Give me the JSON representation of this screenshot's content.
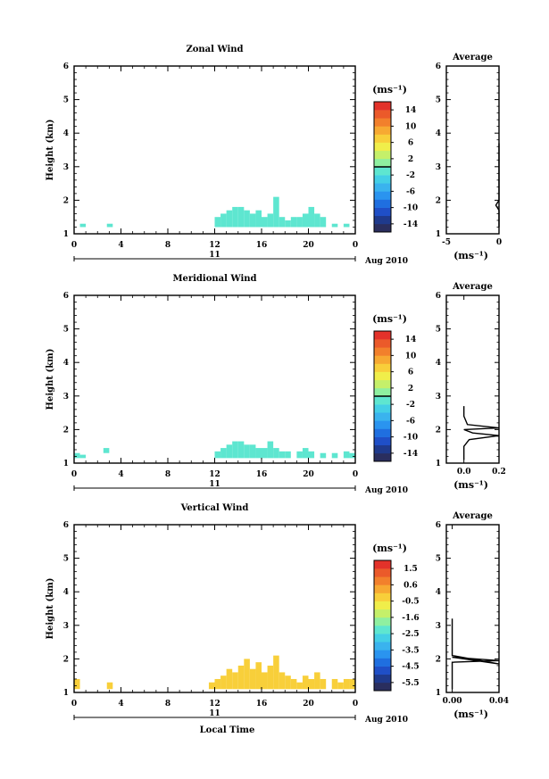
{
  "colormap": [
    "#2a2e5e",
    "#1f3a8c",
    "#1f4fc7",
    "#1f6fe0",
    "#2a94ef",
    "#3ab3ee",
    "#44cfe6",
    "#5ee6d0",
    "#8ff0a0",
    "#c5f06a",
    "#f0ee4a",
    "#f8cf3a",
    "#f7a932",
    "#f2802c",
    "#eb5a2a",
    "#e3322a"
  ],
  "panels": [
    {
      "title": "Zonal Wind",
      "ylabel": "Height (km)",
      "yticks": [
        "1",
        "2",
        "3",
        "4",
        "5",
        "6"
      ],
      "xticks": [
        "0",
        "4",
        "8",
        "12",
        "16",
        "20",
        "0"
      ],
      "day_label": "11",
      "month_label": "Aug 2010",
      "xlabel": "",
      "colorbar": {
        "unit": "(ms⁻¹)",
        "labels": [
          "14",
          "10",
          "6",
          "2",
          "-2",
          "-6",
          "-10",
          "-14"
        ],
        "zero_line": true
      },
      "average": {
        "title": "Average",
        "yticks": [
          "1",
          "2",
          "3",
          "4",
          "5",
          "6"
        ],
        "xticks": [
          "-5",
          "0"
        ],
        "xlabel": "(ms⁻¹)",
        "xlim": [
          -5,
          0
        ]
      },
      "chart_data": {
        "type": "heatmap",
        "x_range_hours": [
          0,
          24
        ],
        "y_range_km": [
          1,
          6
        ],
        "bins": [
          {
            "h": 0.5,
            "z": 1.2,
            "dz": 0.1,
            "c": 7
          },
          {
            "h": 2.8,
            "z": 1.2,
            "dz": 0.1,
            "c": 7
          },
          {
            "h": 12.0,
            "z": 1.2,
            "dz": 0.3,
            "c": 7
          },
          {
            "h": 12.5,
            "z": 1.2,
            "dz": 0.4,
            "c": 7
          },
          {
            "h": 13.0,
            "z": 1.2,
            "dz": 0.5,
            "c": 7
          },
          {
            "h": 13.5,
            "z": 1.2,
            "dz": 0.6,
            "c": 7
          },
          {
            "h": 14.0,
            "z": 1.2,
            "dz": 0.6,
            "c": 7
          },
          {
            "h": 14.5,
            "z": 1.2,
            "dz": 0.5,
            "c": 7
          },
          {
            "h": 15.0,
            "z": 1.2,
            "dz": 0.4,
            "c": 7
          },
          {
            "h": 15.5,
            "z": 1.2,
            "dz": 0.5,
            "c": 7
          },
          {
            "h": 16.0,
            "z": 1.2,
            "dz": 0.3,
            "c": 7
          },
          {
            "h": 16.5,
            "z": 1.2,
            "dz": 0.4,
            "c": 7
          },
          {
            "h": 17.0,
            "z": 1.2,
            "dz": 0.9,
            "c": 7
          },
          {
            "h": 17.5,
            "z": 1.2,
            "dz": 0.3,
            "c": 7
          },
          {
            "h": 18.0,
            "z": 1.2,
            "dz": 0.2,
            "c": 7
          },
          {
            "h": 18.5,
            "z": 1.2,
            "dz": 0.3,
            "c": 7
          },
          {
            "h": 19.0,
            "z": 1.2,
            "dz": 0.3,
            "c": 7
          },
          {
            "h": 19.5,
            "z": 1.2,
            "dz": 0.4,
            "c": 7
          },
          {
            "h": 20.0,
            "z": 1.2,
            "dz": 0.6,
            "c": 7
          },
          {
            "h": 20.5,
            "z": 1.2,
            "dz": 0.4,
            "c": 7
          },
          {
            "h": 21.0,
            "z": 1.2,
            "dz": 0.3,
            "c": 7
          },
          {
            "h": 22.0,
            "z": 1.2,
            "dz": 0.1,
            "c": 7
          },
          {
            "h": 23.0,
            "z": 1.2,
            "dz": 0.1,
            "c": 7
          }
        ],
        "profile": [
          [
            0,
            1.2
          ],
          [
            0,
            1.7
          ],
          [
            -0.3,
            1.85
          ],
          [
            0,
            2.0
          ],
          [
            0,
            2.2
          ],
          [
            0,
            3.4
          ],
          [
            0,
            3.7
          ]
        ]
      }
    },
    {
      "title": "Meridional Wind",
      "ylabel": "Height (km)",
      "yticks": [
        "1",
        "2",
        "3",
        "4",
        "5",
        "6"
      ],
      "xticks": [
        "0",
        "4",
        "8",
        "12",
        "16",
        "20",
        "0"
      ],
      "day_label": "11",
      "month_label": "Aug 2010",
      "xlabel": "",
      "colorbar": {
        "unit": "(ms⁻¹)",
        "labels": [
          "14",
          "10",
          "6",
          "2",
          "-2",
          "-6",
          "-10",
          "-14"
        ],
        "zero_line": true
      },
      "average": {
        "title": "Average",
        "yticks": [
          "1",
          "2",
          "3",
          "4",
          "5",
          "6"
        ],
        "xticks": [
          "0.0",
          "0.2"
        ],
        "xlabel": "(ms⁻¹)",
        "xlim": [
          -0.1,
          0.2
        ]
      },
      "chart_data": {
        "type": "heatmap",
        "x_range_hours": [
          0,
          24
        ],
        "y_range_km": [
          1,
          6
        ],
        "bins": [
          {
            "h": 0.0,
            "z": 1.15,
            "dz": 0.15,
            "c": 7
          },
          {
            "h": 0.5,
            "z": 1.15,
            "dz": 0.1,
            "c": 7
          },
          {
            "h": 2.5,
            "z": 1.3,
            "dz": 0.15,
            "c": 7
          },
          {
            "h": 12.0,
            "z": 1.15,
            "dz": 0.2,
            "c": 7
          },
          {
            "h": 12.5,
            "z": 1.15,
            "dz": 0.3,
            "c": 7
          },
          {
            "h": 13.0,
            "z": 1.15,
            "dz": 0.4,
            "c": 7
          },
          {
            "h": 13.5,
            "z": 1.15,
            "dz": 0.5,
            "c": 7
          },
          {
            "h": 14.0,
            "z": 1.15,
            "dz": 0.5,
            "c": 7
          },
          {
            "h": 14.5,
            "z": 1.15,
            "dz": 0.4,
            "c": 7
          },
          {
            "h": 15.0,
            "z": 1.15,
            "dz": 0.4,
            "c": 7
          },
          {
            "h": 15.5,
            "z": 1.15,
            "dz": 0.3,
            "c": 7
          },
          {
            "h": 16.0,
            "z": 1.15,
            "dz": 0.3,
            "c": 7
          },
          {
            "h": 16.5,
            "z": 1.15,
            "dz": 0.5,
            "c": 7
          },
          {
            "h": 17.0,
            "z": 1.15,
            "dz": 0.3,
            "c": 7
          },
          {
            "h": 17.5,
            "z": 1.15,
            "dz": 0.2,
            "c": 7
          },
          {
            "h": 18.0,
            "z": 1.15,
            "dz": 0.2,
            "c": 7
          },
          {
            "h": 19.0,
            "z": 1.15,
            "dz": 0.2,
            "c": 7
          },
          {
            "h": 19.5,
            "z": 1.15,
            "dz": 0.3,
            "c": 7
          },
          {
            "h": 20.0,
            "z": 1.15,
            "dz": 0.2,
            "c": 7
          },
          {
            "h": 21.0,
            "z": 1.15,
            "dz": 0.15,
            "c": 7
          },
          {
            "h": 22.0,
            "z": 1.15,
            "dz": 0.15,
            "c": 7
          },
          {
            "h": 23.0,
            "z": 1.15,
            "dz": 0.2,
            "c": 7
          },
          {
            "h": 23.5,
            "z": 1.15,
            "dz": 0.15,
            "c": 7
          }
        ],
        "profile": [
          [
            0,
            1.1
          ],
          [
            0,
            1.5
          ],
          [
            0.03,
            1.7
          ],
          [
            0.2,
            1.82
          ],
          [
            0.05,
            1.9
          ],
          [
            0,
            2.0
          ],
          [
            0.2,
            2.05
          ],
          [
            0.02,
            2.15
          ],
          [
            0,
            2.4
          ],
          [
            0,
            2.7
          ]
        ]
      }
    },
    {
      "title": "Vertical Wind",
      "ylabel": "Height (km)",
      "yticks": [
        "1",
        "2",
        "3",
        "4",
        "5",
        "6"
      ],
      "xticks": [
        "0",
        "4",
        "8",
        "12",
        "16",
        "20",
        "0"
      ],
      "day_label": "11",
      "month_label": "Aug 2010",
      "xlabel": "Local Time",
      "colorbar": {
        "unit": "(ms⁻¹)",
        "labels": [
          "1.5",
          "0.6",
          "-0.5",
          "-1.6",
          "-2.5",
          "-3.5",
          "-4.5",
          "-5.5"
        ],
        "zero_line": false
      },
      "average": {
        "title": "Average",
        "yticks": [
          "1",
          "2",
          "3",
          "4",
          "5",
          "6"
        ],
        "xticks": [
          "0.00",
          "0.04"
        ],
        "xlabel": "(ms⁻¹)",
        "xlim": [
          -0.005,
          0.04
        ]
      },
      "chart_data": {
        "type": "heatmap",
        "x_range_hours": [
          0,
          24
        ],
        "y_range_km": [
          1,
          6
        ],
        "bins": [
          {
            "h": 0.0,
            "z": 1.1,
            "dz": 0.3,
            "c": 11
          },
          {
            "h": 2.8,
            "z": 1.1,
            "dz": 0.2,
            "c": 11
          },
          {
            "h": 11.5,
            "z": 1.1,
            "dz": 0.2,
            "c": 11
          },
          {
            "h": 12.0,
            "z": 1.1,
            "dz": 0.3,
            "c": 11
          },
          {
            "h": 12.5,
            "z": 1.1,
            "dz": 0.4,
            "c": 11
          },
          {
            "h": 13.0,
            "z": 1.1,
            "dz": 0.6,
            "c": 11
          },
          {
            "h": 13.5,
            "z": 1.1,
            "dz": 0.5,
            "c": 11
          },
          {
            "h": 14.0,
            "z": 1.1,
            "dz": 0.7,
            "c": 11
          },
          {
            "h": 14.5,
            "z": 1.1,
            "dz": 0.9,
            "c": 11
          },
          {
            "h": 15.0,
            "z": 1.1,
            "dz": 0.6,
            "c": 11
          },
          {
            "h": 15.5,
            "z": 1.1,
            "dz": 0.8,
            "c": 11
          },
          {
            "h": 16.0,
            "z": 1.1,
            "dz": 0.5,
            "c": 11
          },
          {
            "h": 16.5,
            "z": 1.1,
            "dz": 0.7,
            "c": 11
          },
          {
            "h": 17.0,
            "z": 1.1,
            "dz": 1.0,
            "c": 11
          },
          {
            "h": 17.5,
            "z": 1.1,
            "dz": 0.5,
            "c": 11
          },
          {
            "h": 18.0,
            "z": 1.1,
            "dz": 0.4,
            "c": 11
          },
          {
            "h": 18.5,
            "z": 1.1,
            "dz": 0.3,
            "c": 11
          },
          {
            "h": 19.0,
            "z": 1.1,
            "dz": 0.2,
            "c": 11
          },
          {
            "h": 19.5,
            "z": 1.1,
            "dz": 0.4,
            "c": 11
          },
          {
            "h": 20.0,
            "z": 1.1,
            "dz": 0.3,
            "c": 11
          },
          {
            "h": 20.5,
            "z": 1.1,
            "dz": 0.5,
            "c": 11
          },
          {
            "h": 21.0,
            "z": 1.1,
            "dz": 0.3,
            "c": 11
          },
          {
            "h": 22.0,
            "z": 1.1,
            "dz": 0.3,
            "c": 11
          },
          {
            "h": 22.5,
            "z": 1.1,
            "dz": 0.2,
            "c": 11
          },
          {
            "h": 23.0,
            "z": 1.1,
            "dz": 0.3,
            "c": 11
          },
          {
            "h": 23.5,
            "z": 1.1,
            "dz": 0.3,
            "c": 11
          }
        ],
        "profile": [
          [
            0,
            1.1
          ],
          [
            0,
            1.9
          ],
          [
            0.04,
            1.95
          ],
          [
            0.02,
            2.0
          ],
          [
            0,
            2.05
          ],
          [
            0.04,
            1.85
          ],
          [
            0,
            2.1
          ],
          [
            0,
            2.5
          ],
          [
            0.0,
            3.2
          ]
        ]
      }
    }
  ]
}
